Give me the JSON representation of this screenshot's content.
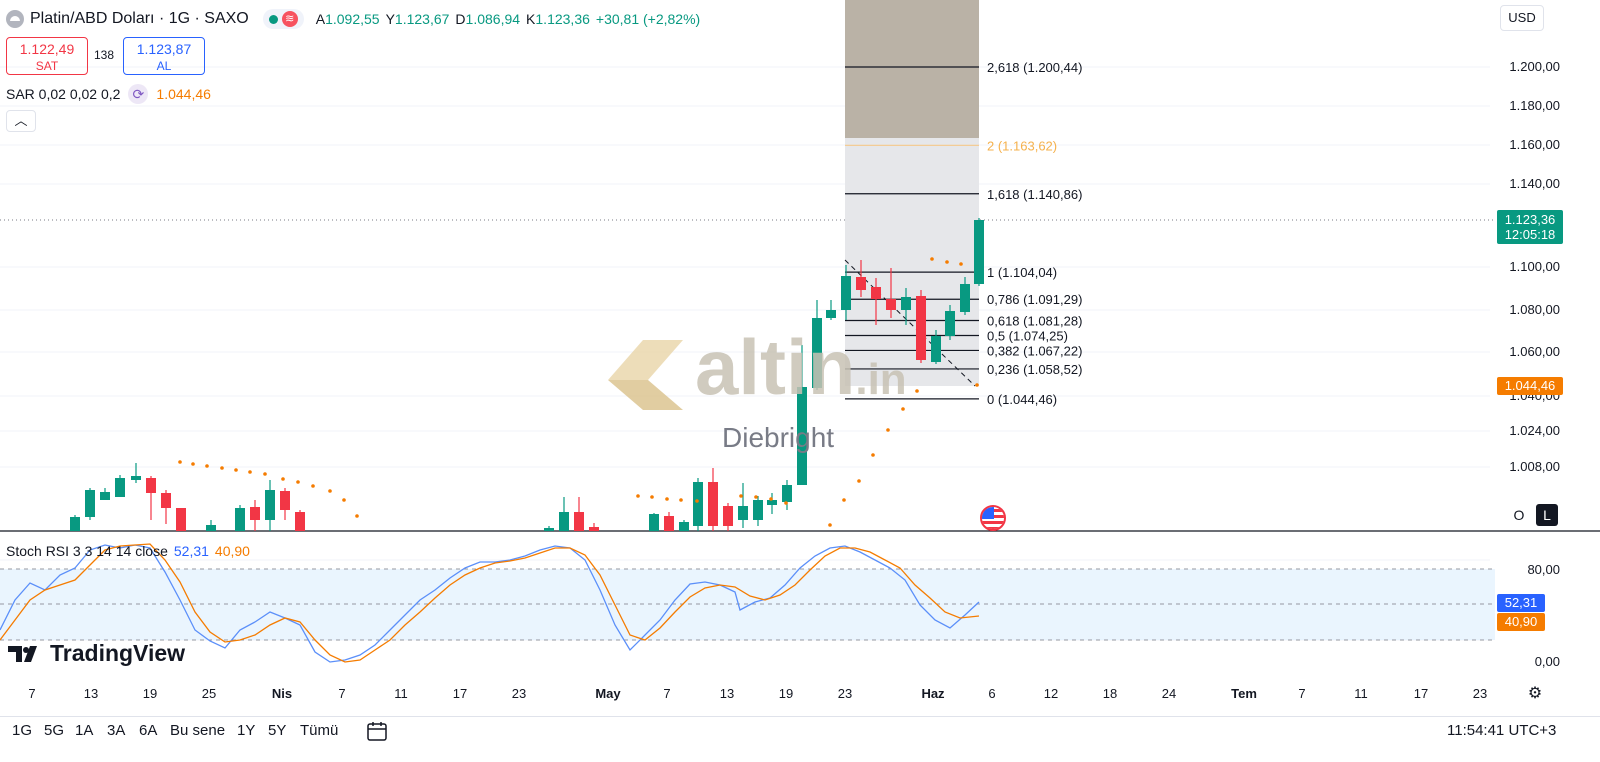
{
  "header": {
    "symbol": "Platin/ABD Doları · 1G · SAXO",
    "ohlc": [
      {
        "k": "A",
        "v": "1.092,55"
      },
      {
        "k": "Y",
        "v": "1.123,67"
      },
      {
        "k": "D",
        "v": "1.086,94"
      },
      {
        "k": "K",
        "v": "1.123,36"
      },
      {
        "k": "",
        "v": "+30,81 (+2,82%)"
      }
    ],
    "wave_glyph": "≋"
  },
  "trade": {
    "sell_price": "1.122,49",
    "sell_label": "SAT",
    "spread": "138",
    "buy_price": "1.123,87",
    "buy_label": "AL"
  },
  "sar": {
    "label": "SAR 0,02 0,02 0,2",
    "value": "1.044,46"
  },
  "currency": "USD",
  "price_axis": [
    "1.200,00",
    "1.180,00",
    "1.160,00",
    "1.140,00",
    "1.100,00",
    "1.080,00",
    "1.060,00",
    "1.040,00",
    "1.024,00",
    "1.008,00"
  ],
  "last_price_tag": {
    "price": "1.123,36",
    "countdown": "12:05:18"
  },
  "sar_tag": "1.044,46",
  "fib_levels": [
    {
      "label": "2,618 (1.200,44)",
      "price": 1200.44
    },
    {
      "label": "2 (1.163,62)",
      "price": 1163.62
    },
    {
      "label": "1,618 (1.140,86)",
      "price": 1140.86
    },
    {
      "label": "1 (1.104,04)",
      "price": 1104.04
    },
    {
      "label": "0,786 (1.091,29)",
      "price": 1091.29
    },
    {
      "label": "0,618 (1.081,28)",
      "price": 1081.28
    },
    {
      "label": "0,5 (1.074,25)",
      "price": 1074.25
    },
    {
      "label": "0,382 (1.067,22)",
      "price": 1067.22
    },
    {
      "label": "0,236 (1.058,52)",
      "price": 1058.52
    },
    {
      "label": "0 (1.044,46)",
      "price": 1044.46
    }
  ],
  "watermark": {
    "brand": "altin",
    "suffix": ".in",
    "author": "Diebright"
  },
  "stoch": {
    "title": "Stoch RSI 3 3 14 14 close",
    "k_value": "52,31",
    "d_value": "40,90",
    "axis": [
      "80,00",
      "0,00"
    ]
  },
  "time_axis": [
    "7",
    "13",
    "19",
    "25",
    "Nis",
    "7",
    "11",
    "17",
    "23",
    "May",
    "7",
    "13",
    "19",
    "23",
    "Haz",
    "6",
    "12",
    "18",
    "24",
    "Tem",
    "7",
    "11",
    "17",
    "23"
  ],
  "time_axis_bold": [
    "Nis",
    "May",
    "Haz",
    "Tem"
  ],
  "ranges": [
    "1G",
    "5G",
    "1A",
    "3A",
    "6A",
    "Bu sene",
    "1Y",
    "5Y",
    "Tümü"
  ],
  "clock": "11:54:41 UTC+3",
  "brand": "TradingView",
  "chart_buttons": {
    "o": "O",
    "l": "L"
  },
  "colors": {
    "up": "#089981",
    "down": "#f23645",
    "accent": "#2962ff",
    "sar": "#f57c00"
  }
}
